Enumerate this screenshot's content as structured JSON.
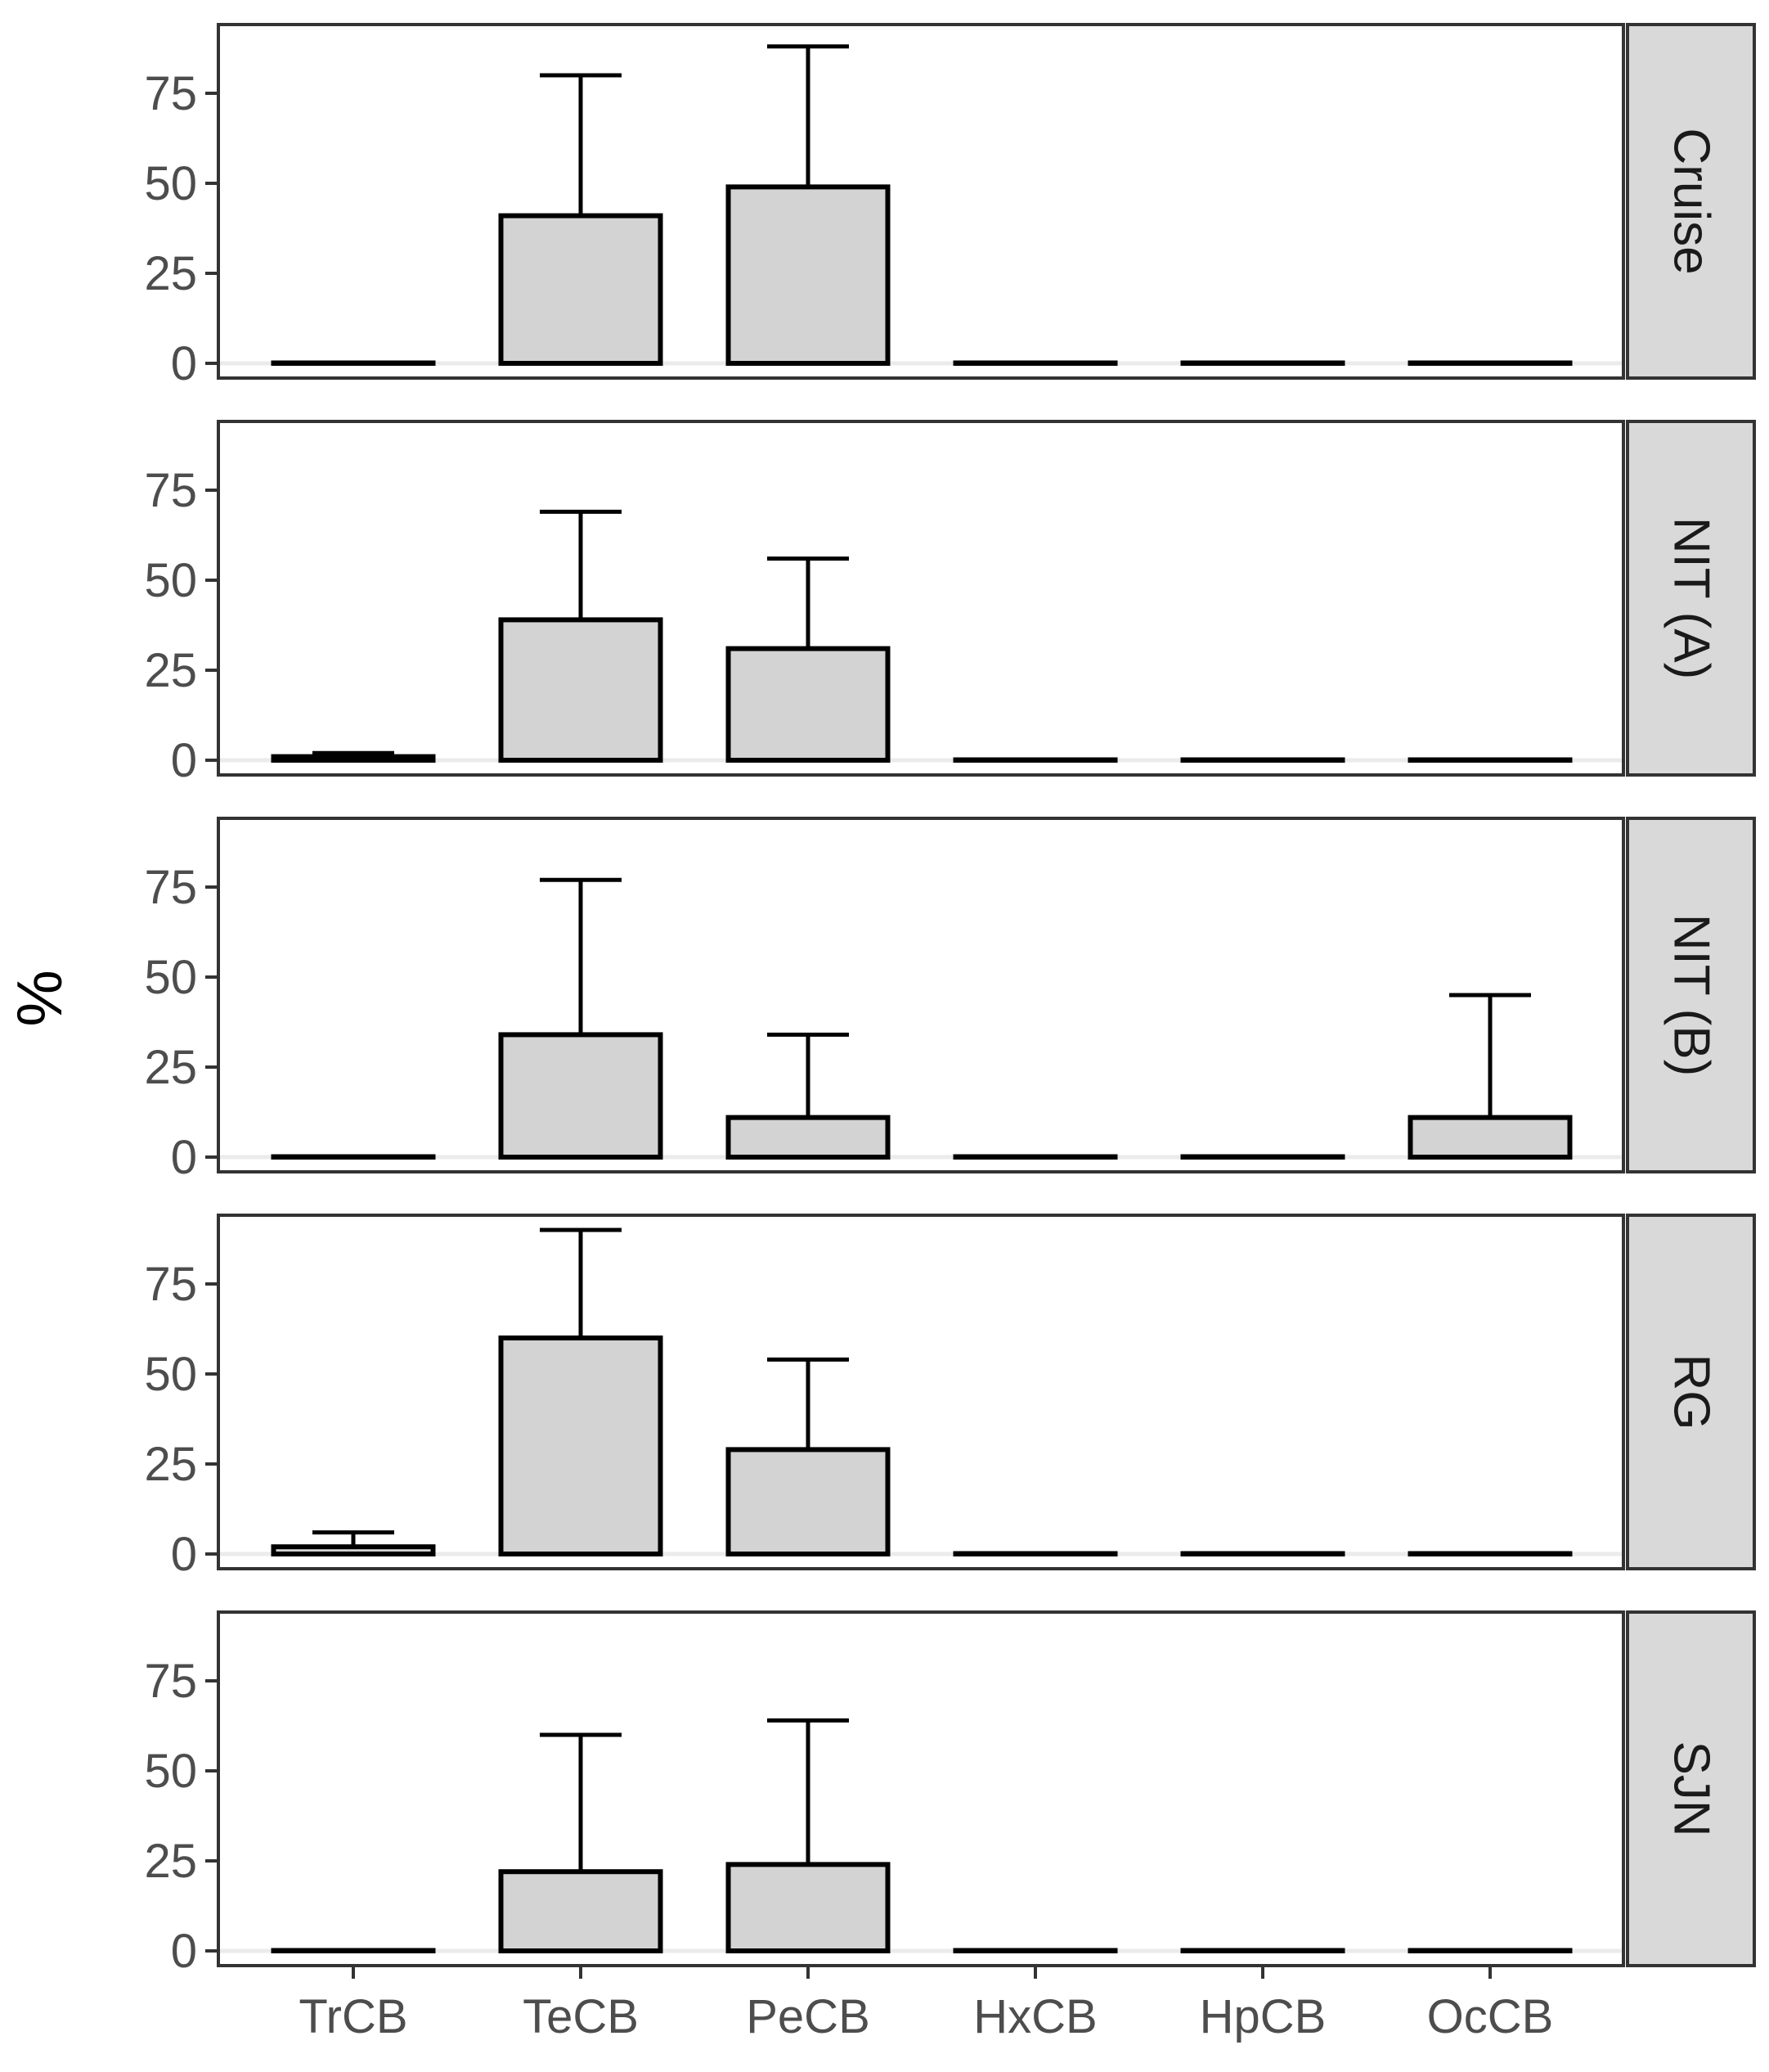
{
  "chart_data": {
    "type": "bar",
    "ylabel": "%",
    "xlabel": "",
    "ylim": [
      -5,
      93
    ],
    "yticks": [
      0,
      25,
      50,
      75
    ],
    "categories": [
      "TrCB",
      "TeCB",
      "PeCB",
      "HxCB",
      "HpCB",
      "OcCB"
    ],
    "colors": {
      "bar_fill": "#d3d3d3",
      "bar_stroke": "#000000",
      "strip_fill": "#d9d9d9",
      "frame": "#333333",
      "zero_line": "#ebebeb"
    },
    "panels": [
      {
        "label": "Cruise",
        "values": [
          0,
          41,
          49,
          0,
          0,
          0
        ],
        "error_upper": [
          0,
          80,
          88,
          0,
          0,
          0
        ]
      },
      {
        "label": "NIT (A)",
        "values": [
          1,
          39,
          31,
          0,
          0,
          0
        ],
        "error_upper": [
          2,
          69,
          56,
          0,
          0,
          0
        ]
      },
      {
        "label": "NIT (B)",
        "values": [
          0,
          34,
          11,
          0,
          0,
          11
        ],
        "error_upper": [
          0,
          77,
          34,
          0,
          0,
          45
        ]
      },
      {
        "label": "RG",
        "values": [
          2,
          60,
          29,
          0,
          0,
          0
        ],
        "error_upper": [
          6,
          90,
          54,
          0,
          0,
          0
        ]
      },
      {
        "label": "SJN",
        "values": [
          0,
          22,
          24,
          0,
          0,
          0
        ],
        "error_upper": [
          0,
          60,
          64,
          0,
          0,
          0
        ]
      }
    ]
  }
}
